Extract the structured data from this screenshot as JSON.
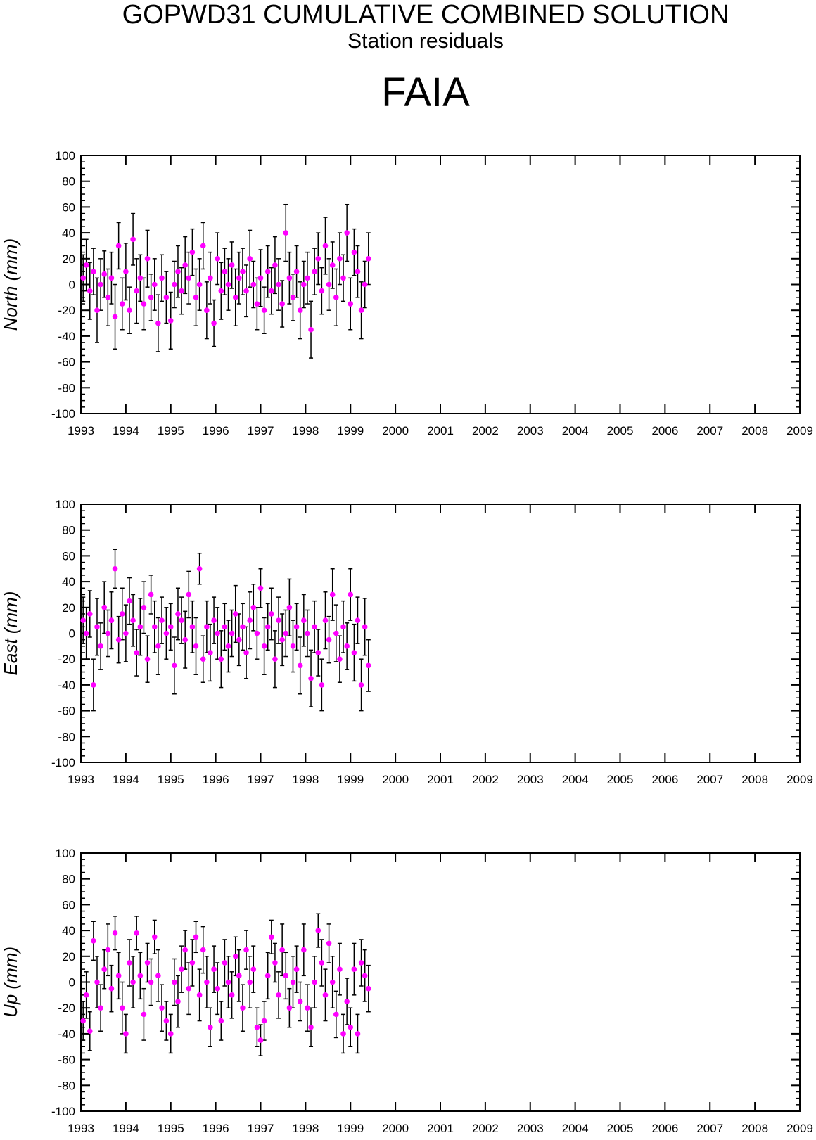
{
  "header": {
    "title": "GOPWD31 CUMULATIVE COMBINED SOLUTION",
    "subtitle": "Station residuals",
    "station": "FAIA"
  },
  "style": {
    "marker_color": "#ff00ff",
    "errorbar_color": "#000000",
    "axis_color": "#000000"
  },
  "chart_data": [
    {
      "type": "scatter",
      "ylabel": "North (mm)",
      "ylim": [
        -100,
        100
      ],
      "xlim": [
        1993,
        2009
      ],
      "x_ticks": [
        "1993",
        "1994",
        "1995",
        "1996",
        "1997",
        "1998",
        "1999",
        "2000",
        "2001",
        "2002",
        "2003",
        "2004",
        "2005",
        "2006",
        "2007",
        "2008",
        "2009"
      ],
      "y_ticks": [
        "100",
        "80",
        "60",
        "40",
        "20",
        "0",
        "-20",
        "-40",
        "-60",
        "-80",
        "-100"
      ],
      "series": [
        {
          "x": [
            1993.05,
            1993.12,
            1993.2,
            1993.28,
            1993.36,
            1993.44,
            1993.52,
            1993.6,
            1993.68,
            1993.76,
            1993.84,
            1993.92,
            1994.0,
            1994.08,
            1994.16,
            1994.24,
            1994.32,
            1994.4,
            1994.48,
            1994.56,
            1994.64,
            1994.72,
            1994.8,
            1994.9,
            1995.0,
            1995.08,
            1995.16,
            1995.24,
            1995.32,
            1995.4,
            1995.48,
            1995.56,
            1995.64,
            1995.72,
            1995.8,
            1995.88,
            1995.96,
            1996.04,
            1996.12,
            1996.2,
            1996.28,
            1996.36,
            1996.44,
            1996.52,
            1996.6,
            1996.68,
            1996.76,
            1996.84,
            1996.92,
            1997.0,
            1997.08,
            1997.16,
            1997.24,
            1997.32,
            1997.4,
            1997.48,
            1997.56,
            1997.64,
            1997.72,
            1997.8,
            1997.88,
            1997.96,
            1998.04,
            1998.12,
            1998.2,
            1998.28,
            1998.36,
            1998.44,
            1998.52,
            1998.6,
            1998.68,
            1998.76,
            1998.84,
            1998.92,
            1999.0,
            1999.08,
            1999.16,
            1999.24,
            1999.32,
            1999.4
          ],
          "y": [
            5,
            15,
            -5,
            10,
            -20,
            0,
            8,
            -10,
            5,
            -25,
            30,
            -15,
            10,
            -20,
            35,
            -5,
            5,
            -15,
            20,
            -10,
            0,
            -30,
            5,
            -10,
            -28,
            0,
            10,
            -5,
            15,
            5,
            25,
            -10,
            0,
            30,
            -20,
            5,
            -30,
            20,
            -5,
            10,
            0,
            15,
            -10,
            5,
            10,
            -5,
            20,
            0,
            -15,
            5,
            -20,
            10,
            -5,
            15,
            0,
            -15,
            40,
            5,
            -10,
            10,
            -20,
            0,
            5,
            -35,
            10,
            20,
            -5,
            30,
            0,
            15,
            -10,
            20,
            5,
            40,
            -15,
            25,
            10,
            -20,
            0,
            20
          ],
          "err": [
            18,
            20,
            22,
            18,
            25,
            20,
            18,
            22,
            20,
            25,
            18,
            20,
            22,
            18,
            20,
            25,
            18,
            20,
            22,
            18,
            20,
            22,
            18,
            20,
            22,
            18,
            20,
            18,
            22,
            20,
            18,
            22,
            20,
            18,
            22,
            20,
            18,
            20,
            22,
            18,
            20,
            18,
            22,
            20,
            18,
            20,
            22,
            18,
            20,
            22,
            18,
            20,
            18,
            22,
            20,
            18,
            22,
            20,
            18,
            20,
            22,
            18,
            20,
            22,
            18,
            20,
            18,
            22,
            20,
            18,
            22,
            20,
            18,
            22,
            20,
            18,
            20,
            22,
            18,
            20
          ]
        }
      ]
    },
    {
      "type": "scatter",
      "ylabel": "East (mm)",
      "ylim": [
        -100,
        100
      ],
      "xlim": [
        1993,
        2009
      ],
      "x_ticks": [
        "1993",
        "1994",
        "1995",
        "1996",
        "1997",
        "1998",
        "1999",
        "2000",
        "2001",
        "2002",
        "2003",
        "2004",
        "2005",
        "2006",
        "2007",
        "2008",
        "2009"
      ],
      "y_ticks": [
        "100",
        "80",
        "60",
        "40",
        "20",
        "0",
        "-20",
        "-40",
        "-60",
        "-80",
        "-100"
      ],
      "series": [
        {
          "x": [
            1993.05,
            1993.12,
            1993.2,
            1993.28,
            1993.36,
            1993.44,
            1993.52,
            1993.6,
            1993.68,
            1993.76,
            1993.84,
            1993.92,
            1994.0,
            1994.08,
            1994.16,
            1994.24,
            1994.32,
            1994.4,
            1994.48,
            1994.56,
            1994.64,
            1994.72,
            1994.8,
            1994.9,
            1995.0,
            1995.08,
            1995.16,
            1995.24,
            1995.32,
            1995.4,
            1995.48,
            1995.56,
            1995.64,
            1995.72,
            1995.8,
            1995.88,
            1995.96,
            1996.04,
            1996.12,
            1996.2,
            1996.28,
            1996.36,
            1996.44,
            1996.52,
            1996.6,
            1996.68,
            1996.76,
            1996.84,
            1996.92,
            1997.0,
            1997.08,
            1997.16,
            1997.24,
            1997.32,
            1997.4,
            1997.48,
            1997.56,
            1997.64,
            1997.72,
            1997.8,
            1997.88,
            1997.96,
            1998.04,
            1998.12,
            1998.2,
            1998.28,
            1998.36,
            1998.44,
            1998.52,
            1998.6,
            1998.68,
            1998.76,
            1998.84,
            1998.92,
            1999.0,
            1999.08,
            1999.16,
            1999.24,
            1999.32,
            1999.4
          ],
          "y": [
            10,
            0,
            15,
            -40,
            5,
            -10,
            20,
            0,
            10,
            50,
            -5,
            15,
            0,
            25,
            10,
            -15,
            5,
            20,
            -20,
            30,
            5,
            -10,
            10,
            0,
            5,
            -25,
            15,
            10,
            -5,
            30,
            5,
            -10,
            50,
            -20,
            5,
            -15,
            10,
            0,
            -20,
            5,
            -10,
            0,
            15,
            -5,
            5,
            -15,
            10,
            20,
            0,
            35,
            -10,
            5,
            15,
            -20,
            10,
            -5,
            0,
            20,
            -10,
            5,
            -25,
            10,
            0,
            -35,
            5,
            -15,
            -40,
            10,
            -5,
            30,
            0,
            -20,
            5,
            -10,
            30,
            -15,
            10,
            -40,
            5,
            -25
          ],
          "err": [
            18,
            20,
            18,
            20,
            22,
            18,
            20,
            18,
            22,
            15,
            18,
            20,
            22,
            18,
            20,
            18,
            22,
            20,
            18,
            15,
            20,
            22,
            18,
            20,
            18,
            22,
            20,
            18,
            22,
            18,
            20,
            22,
            12,
            18,
            20,
            22,
            18,
            20,
            22,
            18,
            20,
            18,
            22,
            20,
            18,
            20,
            22,
            18,
            20,
            15,
            22,
            18,
            20,
            22,
            18,
            20,
            18,
            22,
            20,
            18,
            22,
            20,
            18,
            22,
            20,
            18,
            20,
            22,
            18,
            20,
            22,
            18,
            20,
            18,
            20,
            22,
            18,
            20,
            22,
            20
          ]
        }
      ]
    },
    {
      "type": "scatter",
      "ylabel": "Up (mm)",
      "ylim": [
        -100,
        100
      ],
      "xlim": [
        1993,
        2009
      ],
      "x_ticks": [
        "1993",
        "1994",
        "1995",
        "1996",
        "1997",
        "1998",
        "1999",
        "2000",
        "2001",
        "2002",
        "2003",
        "2004",
        "2005",
        "2006",
        "2007",
        "2008",
        "2009"
      ],
      "y_ticks": [
        "100",
        "80",
        "60",
        "40",
        "20",
        "0",
        "-20",
        "-40",
        "-60",
        "-80",
        "-100"
      ],
      "series": [
        {
          "x": [
            1993.05,
            1993.12,
            1993.2,
            1993.28,
            1993.36,
            1993.44,
            1993.52,
            1993.6,
            1993.68,
            1993.76,
            1993.84,
            1993.92,
            1994.0,
            1994.08,
            1994.16,
            1994.24,
            1994.32,
            1994.4,
            1994.48,
            1994.56,
            1994.64,
            1994.72,
            1994.8,
            1994.9,
            1995.0,
            1995.08,
            1995.16,
            1995.24,
            1995.32,
            1995.4,
            1995.48,
            1995.56,
            1995.64,
            1995.72,
            1995.8,
            1995.88,
            1995.96,
            1996.04,
            1996.12,
            1996.2,
            1996.28,
            1996.36,
            1996.44,
            1996.52,
            1996.6,
            1996.68,
            1996.76,
            1996.84,
            1996.92,
            1997.0,
            1997.08,
            1997.16,
            1997.24,
            1997.32,
            1997.4,
            1997.48,
            1997.56,
            1997.64,
            1997.72,
            1997.8,
            1997.88,
            1997.96,
            1998.04,
            1998.12,
            1998.2,
            1998.28,
            1998.36,
            1998.44,
            1998.52,
            1998.6,
            1998.68,
            1998.76,
            1998.84,
            1998.92,
            1999.0,
            1999.08,
            1999.16,
            1999.24,
            1999.32,
            1999.4
          ],
          "y": [
            -30,
            -10,
            -38,
            32,
            0,
            -20,
            10,
            25,
            -5,
            38,
            5,
            -20,
            -40,
            15,
            0,
            38,
            5,
            -25,
            15,
            0,
            35,
            5,
            -20,
            -30,
            -40,
            0,
            -15,
            10,
            25,
            -5,
            15,
            35,
            -10,
            25,
            0,
            -35,
            10,
            -5,
            -30,
            15,
            0,
            -10,
            20,
            5,
            -20,
            25,
            0,
            10,
            -35,
            -45,
            -30,
            5,
            35,
            15,
            -10,
            25,
            5,
            -20,
            0,
            10,
            -15,
            25,
            -20,
            -35,
            0,
            40,
            15,
            -10,
            30,
            0,
            -25,
            10,
            -40,
            -15,
            -35,
            10,
            -40,
            15,
            5,
            -5
          ],
          "err": [
            15,
            18,
            15,
            15,
            20,
            18,
            15,
            20,
            18,
            13,
            18,
            20,
            15,
            18,
            20,
            13,
            18,
            20,
            15,
            18,
            13,
            20,
            18,
            15,
            15,
            18,
            20,
            18,
            15,
            20,
            18,
            12,
            20,
            18,
            20,
            15,
            18,
            20,
            15,
            18,
            20,
            18,
            15,
            20,
            18,
            15,
            20,
            18,
            15,
            12,
            15,
            18,
            13,
            15,
            18,
            20,
            18,
            15,
            20,
            18,
            15,
            20,
            18,
            15,
            20,
            13,
            18,
            20,
            15,
            20,
            18,
            20,
            15,
            18,
            15,
            20,
            15,
            18,
            20,
            18
          ]
        }
      ]
    }
  ]
}
